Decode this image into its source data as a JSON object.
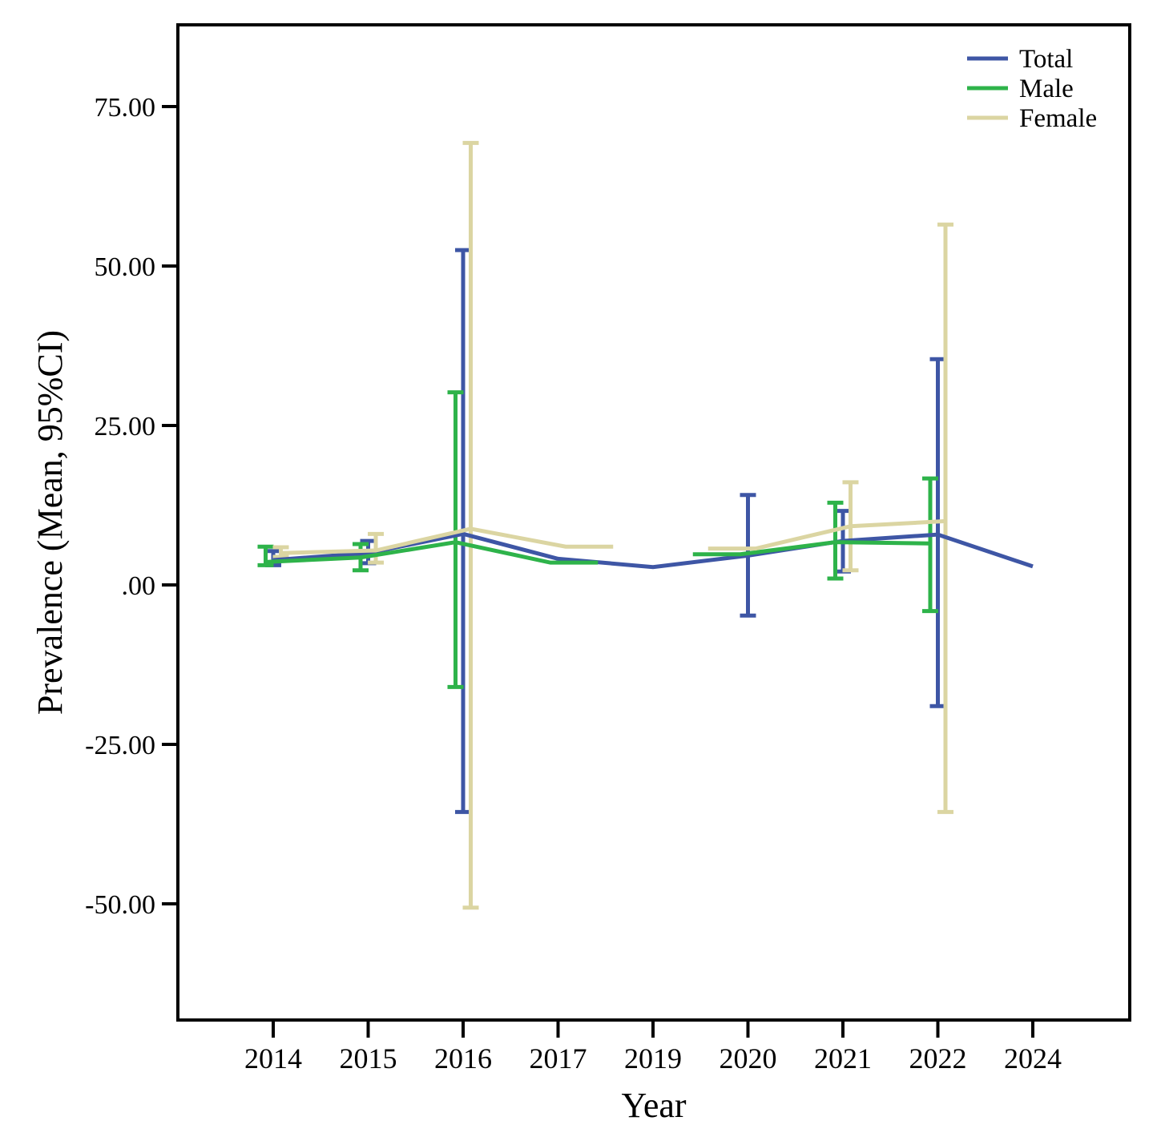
{
  "chart_data": {
    "type": "line",
    "title": "",
    "xlabel": "Year",
    "ylabel": "Prevalence (Mean, 95%CI)",
    "legend_position": "top-right-inside",
    "grid": false,
    "error_bars": "95% CI, capped",
    "categories": [
      "2014",
      "2015",
      "2016",
      "2017",
      "2019",
      "2020",
      "2021",
      "2022",
      "2024"
    ],
    "y_ticks": [
      {
        "label": "75.00",
        "value": 75
      },
      {
        "label": "50.00",
        "value": 50
      },
      {
        "label": "25.00",
        "value": 25
      },
      {
        "label": ".00",
        "value": 0
      },
      {
        "label": "-25.00",
        "value": -25
      },
      {
        "label": "-50.00",
        "value": -50
      }
    ],
    "ylim": [
      -68,
      88
    ],
    "series": [
      {
        "name": "Total",
        "color": "#3E56A5",
        "means": [
          3.9,
          5.0,
          8.0,
          4.1,
          2.8,
          4.6,
          6.9,
          7.9,
          2.9
        ],
        "ci_low": [
          3.1,
          3.4,
          -35.6,
          null,
          null,
          -4.8,
          2.1,
          -19.0,
          null
        ],
        "ci_high": [
          5.3,
          6.9,
          52.5,
          null,
          null,
          14.1,
          11.6,
          35.4,
          null
        ]
      },
      {
        "name": "Male",
        "color": "#2EB34A",
        "means": [
          3.6,
          4.3,
          6.7,
          3.5,
          null,
          4.8,
          6.7,
          6.5,
          null
        ],
        "ci_low": [
          3.1,
          2.3,
          -16.0,
          null,
          null,
          null,
          1.0,
          -4.1,
          null
        ],
        "ci_high": [
          6.0,
          6.4,
          30.2,
          null,
          null,
          null,
          12.9,
          16.7,
          null
        ]
      },
      {
        "name": "Female",
        "color": "#DBD5A2",
        "means": [
          5.0,
          5.4,
          8.8,
          6.0,
          null,
          5.7,
          9.2,
          10.0,
          null
        ],
        "ci_low": [
          4.4,
          3.5,
          -50.6,
          null,
          null,
          null,
          2.3,
          -35.6,
          null
        ],
        "ci_high": [
          5.9,
          8.0,
          69.3,
          null,
          null,
          null,
          16.1,
          56.5,
          null
        ]
      }
    ]
  }
}
